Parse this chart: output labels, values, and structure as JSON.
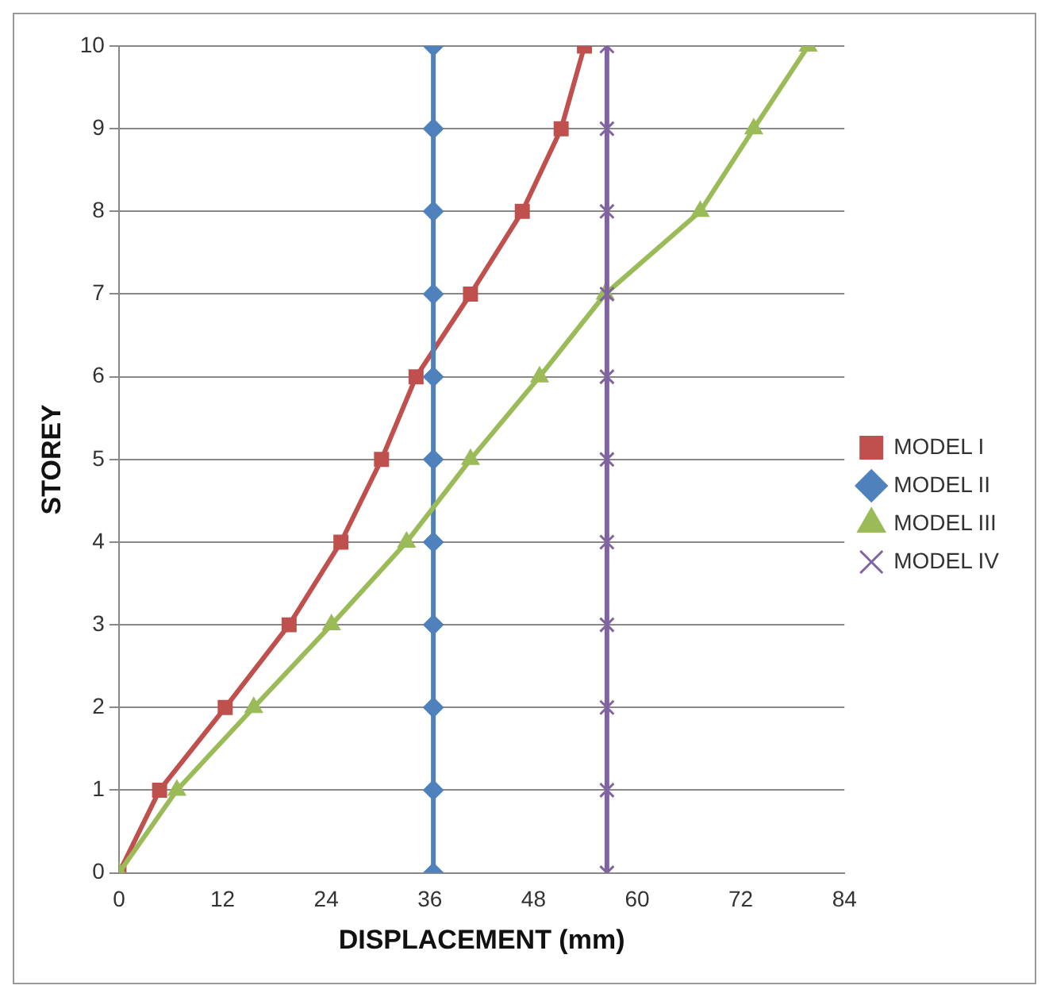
{
  "chart_data": {
    "type": "line",
    "xlabel": "DISPLACEMENT (mm)",
    "ylabel": "STOREY",
    "xlim": [
      0,
      84
    ],
    "xticks": [
      0,
      12,
      24,
      36,
      48,
      60,
      72,
      84
    ],
    "ylim": [
      0,
      10
    ],
    "yticks": [
      0,
      1,
      2,
      3,
      4,
      5,
      6,
      7,
      8,
      9,
      10
    ],
    "grid": "y",
    "legend": "right",
    "series": [
      {
        "name": "MODEL I",
        "color": "#c0504d",
        "marker": "square",
        "x": [
          0,
          4.7,
          12.3,
          19.7,
          25.7,
          30.4,
          34.4,
          40.7,
          46.7,
          51.2,
          53.9
        ],
        "values": [
          0,
          1,
          2,
          3,
          4,
          5,
          6,
          7,
          8,
          9,
          10
        ]
      },
      {
        "name": "MODEL II",
        "color": "#4f81bd",
        "marker": "diamond",
        "x": [
          36.4,
          36.4,
          36.4,
          36.4,
          36.4,
          36.4,
          36.4,
          36.4,
          36.4,
          36.4,
          36.4
        ],
        "values": [
          0,
          1,
          2,
          3,
          4,
          5,
          6,
          7,
          8,
          9,
          10
        ]
      },
      {
        "name": "MODEL III",
        "color": "#9bbb59",
        "marker": "triangle",
        "x": [
          0,
          6.7,
          15.6,
          24.6,
          33.3,
          40.7,
          48.7,
          56.3,
          67.3,
          73.5,
          79.8
        ],
        "values": [
          0,
          1,
          2,
          3,
          4,
          5,
          6,
          7,
          8,
          9,
          10
        ]
      },
      {
        "name": "MODEL IV",
        "color": "#8064a2",
        "marker": "cross",
        "x": [
          56.5,
          56.5,
          56.5,
          56.5,
          56.5,
          56.5,
          56.5,
          56.5,
          56.5,
          56.5,
          56.5
        ],
        "values": [
          0,
          1,
          2,
          3,
          4,
          5,
          6,
          7,
          8,
          9,
          10
        ]
      }
    ]
  }
}
